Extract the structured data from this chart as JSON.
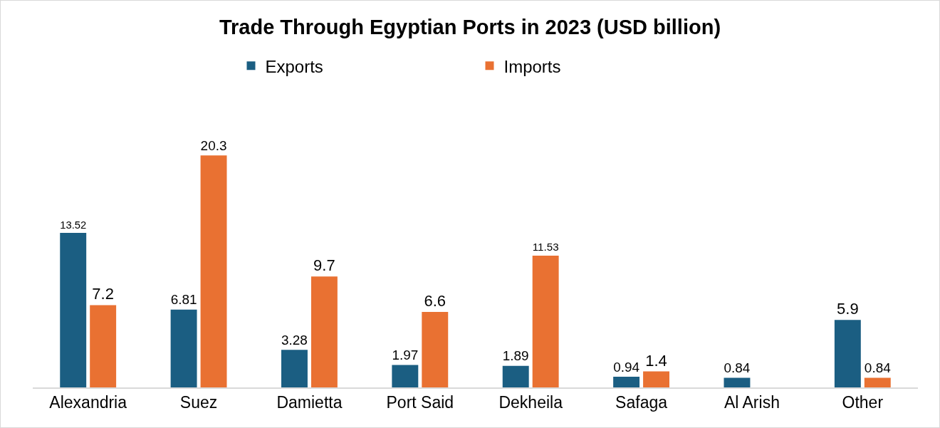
{
  "chart_data": {
    "type": "bar",
    "title": "Trade Through Egyptian Ports in 2023 (USD billion)",
    "categories": [
      "Alexandria",
      "Suez",
      "Damietta",
      "Port Said",
      "Dekheila",
      "Safaga",
      "Al Arish",
      "Other"
    ],
    "series": [
      {
        "name": "Exports",
        "color": "#1b5e82",
        "values": [
          13.52,
          6.81,
          3.28,
          1.97,
          1.89,
          0.94,
          0.84,
          5.9
        ]
      },
      {
        "name": "Imports",
        "color": "#e97132",
        "values": [
          7.2,
          20.3,
          9.7,
          6.6,
          11.53,
          1.4,
          null,
          0.84
        ]
      }
    ],
    "data_labels": true,
    "legend": "top",
    "grid": false
  }
}
